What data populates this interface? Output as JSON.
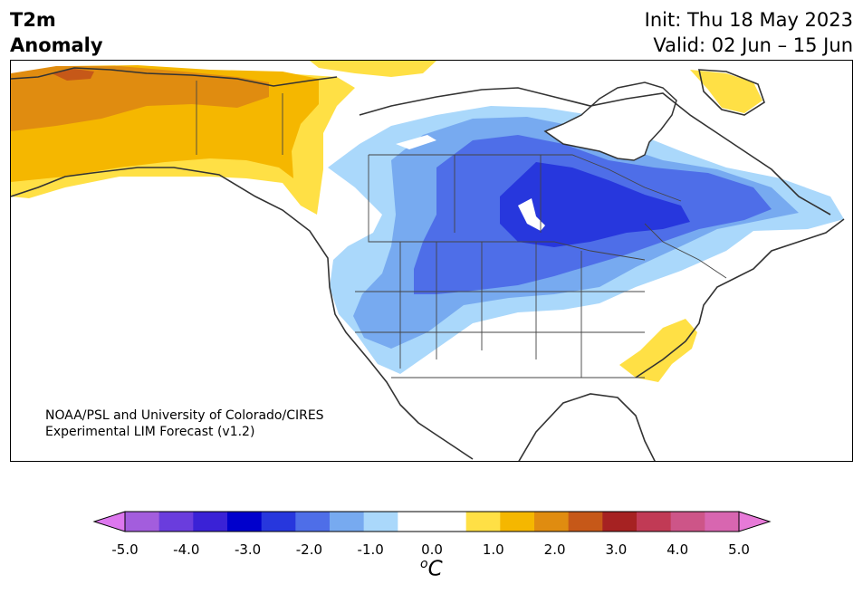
{
  "header": {
    "variable_line1": "T2m",
    "variable_line2": "Anomaly",
    "init": "Init: Thu 18 May 2023",
    "valid": "Valid: 02 Jun – 15 Jun"
  },
  "credit": {
    "line1": "NOAA/PSL and University of Colorado/CIRES",
    "line2": "Experimental LIM Forecast (v1.2)"
  },
  "colorbar": {
    "ticks": [
      "-5.0",
      "-4.0",
      "-3.0",
      "-2.0",
      "-1.0",
      "0.0",
      "1.0",
      "2.0",
      "3.0",
      "4.0",
      "5.0"
    ],
    "unit_super": "o",
    "unit": "C",
    "colors": [
      "#dd77ee",
      "#a35ddd",
      "#6a3ddd",
      "#3a22d6",
      "#0000cc",
      "#2737dd",
      "#4e6ee8",
      "#77aaf0",
      "#aad8fb",
      "#ffffff",
      "#ffffff",
      "#ffe045",
      "#f5b700",
      "#e08c10",
      "#c65818",
      "#a62222",
      "#c13a55",
      "#cd5588",
      "#d866b0",
      "#e77ad8"
    ]
  },
  "map": {
    "region": "North America",
    "colors": {
      "warm_yellow": "#ffe045",
      "warm_gold": "#f5b700",
      "warm_orange": "#e08c10",
      "warm_red": "#c65818",
      "cool_1": "#aad8fb",
      "cool_2": "#77aaf0",
      "cool_3": "#4e6ee8",
      "cool_4": "#2737dd",
      "coast": "#333333"
    }
  }
}
